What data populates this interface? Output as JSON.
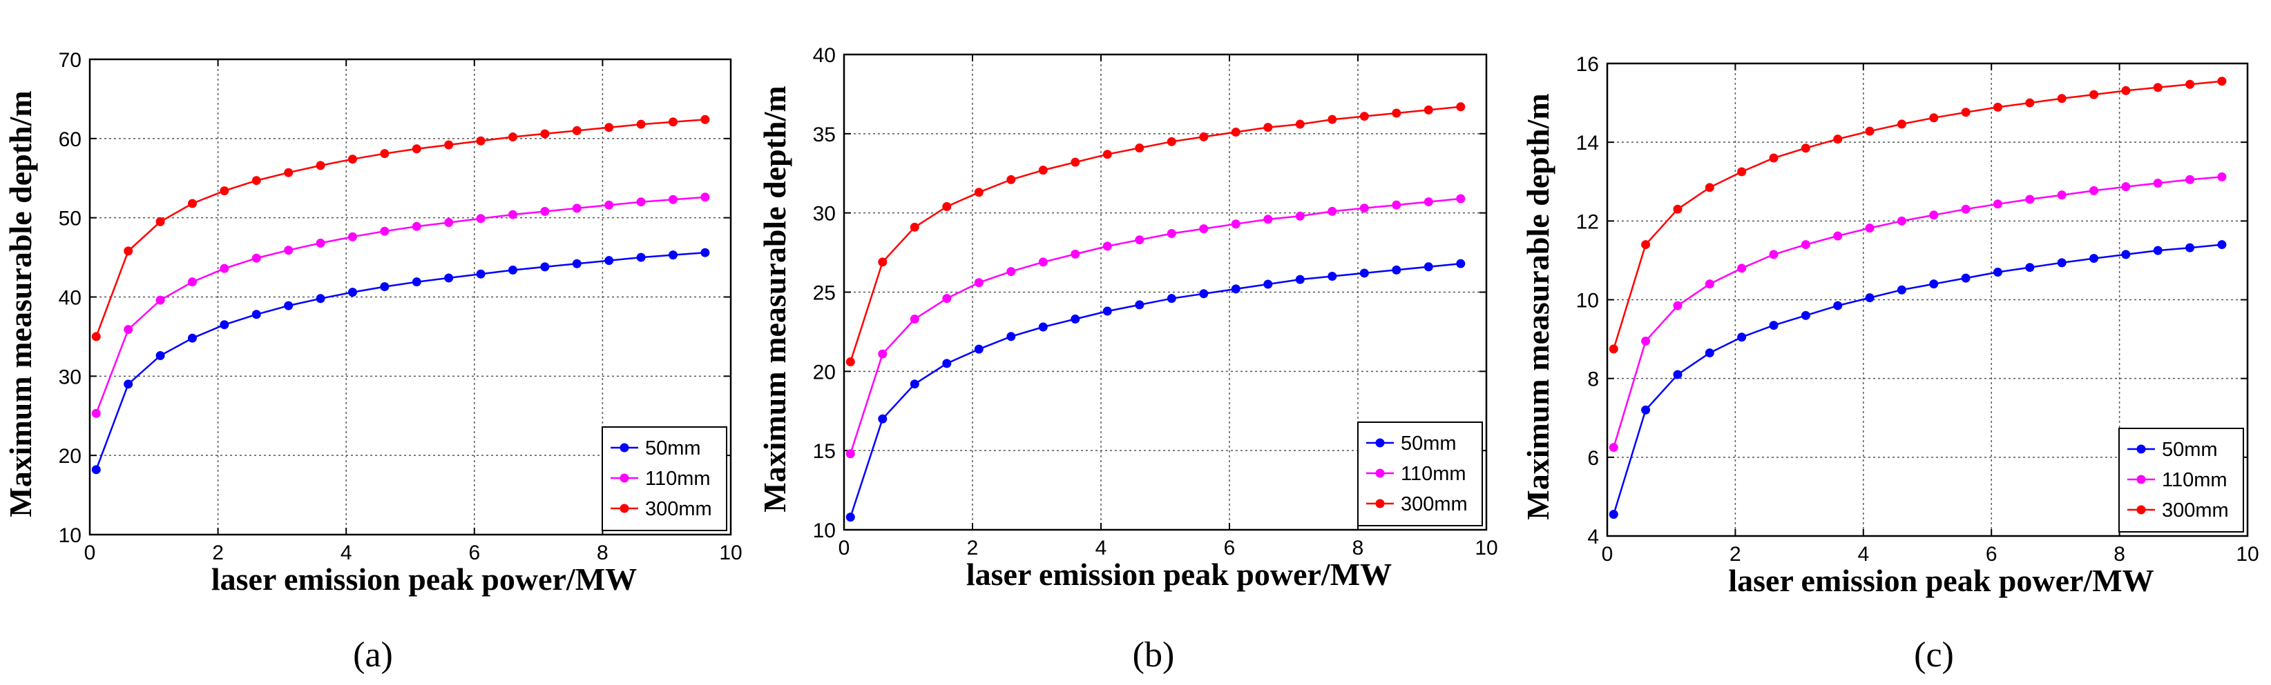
{
  "chart_data": [
    {
      "type": "line",
      "caption": "(a)",
      "xlabel": "laser emission peak power/MW",
      "ylabel": "Maximum measurable depth/m",
      "xlim": [
        0,
        10
      ],
      "ylim": [
        10,
        70
      ],
      "xticks": [
        "0",
        "2",
        "4",
        "6",
        "8",
        "10"
      ],
      "yticks": [
        "10",
        "20",
        "30",
        "40",
        "50",
        "60",
        "70"
      ],
      "grid": true,
      "legend_position": "bottom-right",
      "x": [
        0.1,
        0.6,
        1.1,
        1.6,
        2.1,
        2.6,
        3.1,
        3.6,
        4.1,
        4.6,
        5.1,
        5.6,
        6.1,
        6.6,
        7.1,
        7.6,
        8.1,
        8.6,
        9.1,
        9.6
      ],
      "series": [
        {
          "name": "50mm",
          "color": "#0000ff",
          "values": [
            18.2,
            29.0,
            32.6,
            34.8,
            36.5,
            37.8,
            38.9,
            39.8,
            40.6,
            41.3,
            41.9,
            42.4,
            42.9,
            43.4,
            43.8,
            44.2,
            44.6,
            45.0,
            45.3,
            45.6
          ]
        },
        {
          "name": "110mm",
          "color": "#ff00ff",
          "values": [
            25.3,
            35.9,
            39.6,
            41.9,
            43.6,
            44.9,
            45.9,
            46.8,
            47.6,
            48.3,
            48.9,
            49.4,
            49.9,
            50.4,
            50.8,
            51.2,
            51.6,
            52.0,
            52.3,
            52.6
          ]
        },
        {
          "name": "300mm",
          "color": "#ff0000",
          "values": [
            35.0,
            45.8,
            49.5,
            51.8,
            53.4,
            54.7,
            55.7,
            56.6,
            57.4,
            58.1,
            58.7,
            59.2,
            59.7,
            60.2,
            60.6,
            61.0,
            61.4,
            61.8,
            62.1,
            62.4
          ]
        }
      ]
    },
    {
      "type": "line",
      "caption": "(b)",
      "xlabel": "laser emission peak power/MW",
      "ylabel": "Maximum measurable depth/m",
      "xlim": [
        0,
        10
      ],
      "ylim": [
        10,
        40
      ],
      "xticks": [
        "0",
        "2",
        "4",
        "6",
        "8",
        "10"
      ],
      "yticks": [
        "10",
        "15",
        "20",
        "25",
        "30",
        "35",
        "40"
      ],
      "grid": true,
      "legend_position": "bottom-right",
      "x": [
        0.1,
        0.6,
        1.1,
        1.6,
        2.1,
        2.6,
        3.1,
        3.6,
        4.1,
        4.6,
        5.1,
        5.6,
        6.1,
        6.6,
        7.1,
        7.6,
        8.1,
        8.6,
        9.1,
        9.6
      ],
      "series": [
        {
          "name": "50mm",
          "color": "#0000ff",
          "values": [
            10.8,
            17.0,
            19.2,
            20.5,
            21.4,
            22.2,
            22.8,
            23.3,
            23.8,
            24.2,
            24.6,
            24.9,
            25.2,
            25.5,
            25.8,
            26.0,
            26.2,
            26.4,
            26.6,
            26.8
          ]
        },
        {
          "name": "110mm",
          "color": "#ff00ff",
          "values": [
            14.8,
            21.1,
            23.3,
            24.6,
            25.6,
            26.3,
            26.9,
            27.4,
            27.9,
            28.3,
            28.7,
            29.0,
            29.3,
            29.6,
            29.8,
            30.1,
            30.3,
            30.5,
            30.7,
            30.9
          ]
        },
        {
          "name": "300mm",
          "color": "#ff0000",
          "values": [
            20.6,
            26.9,
            29.1,
            30.4,
            31.3,
            32.1,
            32.7,
            33.2,
            33.7,
            34.1,
            34.5,
            34.8,
            35.1,
            35.4,
            35.6,
            35.9,
            36.1,
            36.3,
            36.5,
            36.7
          ]
        }
      ]
    },
    {
      "type": "line",
      "caption": "(c)",
      "xlabel": "laser emission peak power/MW",
      "ylabel": "Maximum measurable depth/m",
      "xlim": [
        0,
        10
      ],
      "ylim": [
        4,
        16
      ],
      "xticks": [
        "0",
        "2",
        "4",
        "6",
        "8",
        "10"
      ],
      "yticks": [
        "4",
        "6",
        "8",
        "10",
        "12",
        "14",
        "16"
      ],
      "grid": true,
      "legend_position": "bottom-right",
      "x": [
        0.1,
        0.6,
        1.1,
        1.6,
        2.1,
        2.6,
        3.1,
        3.6,
        4.1,
        4.6,
        5.1,
        5.6,
        6.1,
        6.6,
        7.1,
        7.6,
        8.1,
        8.6,
        9.1,
        9.6
      ],
      "series": [
        {
          "name": "50mm",
          "color": "#0000ff",
          "values": [
            4.55,
            7.2,
            8.1,
            8.65,
            9.05,
            9.35,
            9.6,
            9.85,
            10.05,
            10.25,
            10.4,
            10.55,
            10.7,
            10.82,
            10.94,
            11.05,
            11.15,
            11.25,
            11.32,
            11.4
          ]
        },
        {
          "name": "110mm",
          "color": "#ff00ff",
          "values": [
            6.25,
            8.95,
            9.85,
            10.4,
            10.8,
            11.15,
            11.4,
            11.62,
            11.82,
            12.0,
            12.15,
            12.3,
            12.43,
            12.55,
            12.66,
            12.77,
            12.87,
            12.96,
            13.05,
            13.12
          ]
        },
        {
          "name": "300mm",
          "color": "#ff0000",
          "values": [
            8.75,
            11.4,
            12.3,
            12.85,
            13.25,
            13.6,
            13.85,
            14.08,
            14.28,
            14.46,
            14.62,
            14.76,
            14.89,
            15.0,
            15.11,
            15.21,
            15.31,
            15.39,
            15.47,
            15.55
          ]
        }
      ]
    }
  ]
}
